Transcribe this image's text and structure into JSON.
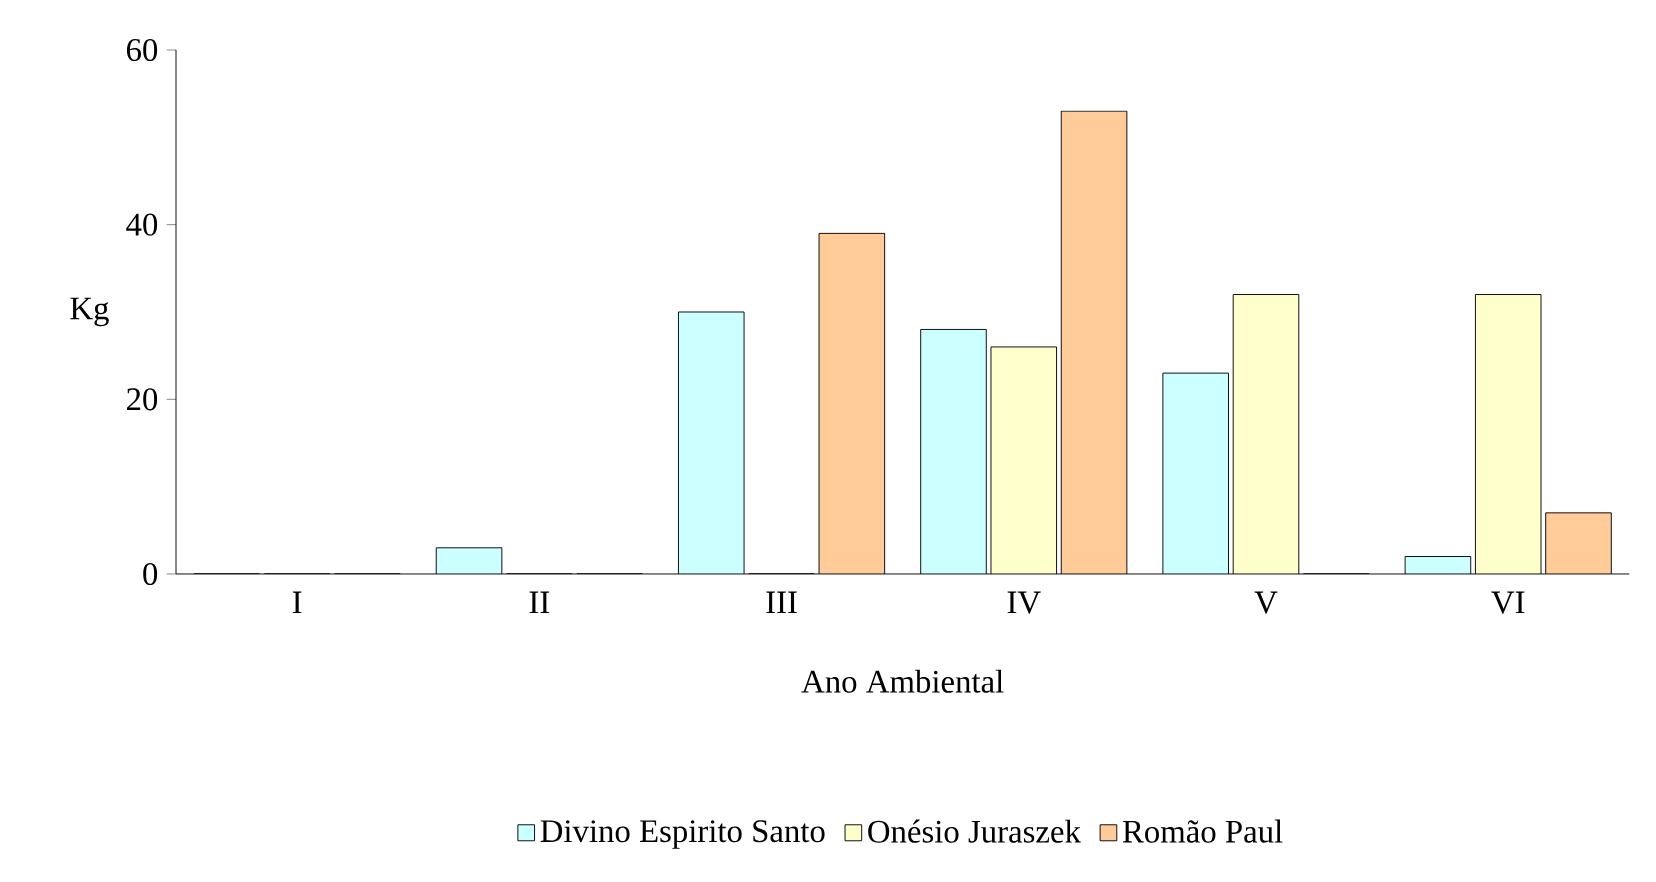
{
  "chart_data": {
    "type": "bar",
    "xlabel": "Ano Ambiental",
    "ylabel": "Kg",
    "categories": [
      "I",
      "II",
      "III",
      "IV",
      "V",
      "VI"
    ],
    "series": [
      {
        "name": "Divino Espirito Santo",
        "color": "#ccffff",
        "values": [
          0,
          3,
          30,
          28,
          23,
          2
        ]
      },
      {
        "name": "Onésio Juraszek",
        "color": "#ffffcc",
        "values": [
          0,
          0,
          0,
          26,
          32,
          32
        ]
      },
      {
        "name": "Romão Paul",
        "color": "#ffcc99",
        "values": [
          0,
          0,
          39,
          53,
          0,
          7
        ]
      }
    ],
    "ylim": [
      0,
      60
    ],
    "yticks": [
      0,
      20,
      40,
      60
    ],
    "grid": false,
    "legend": "bottom"
  }
}
